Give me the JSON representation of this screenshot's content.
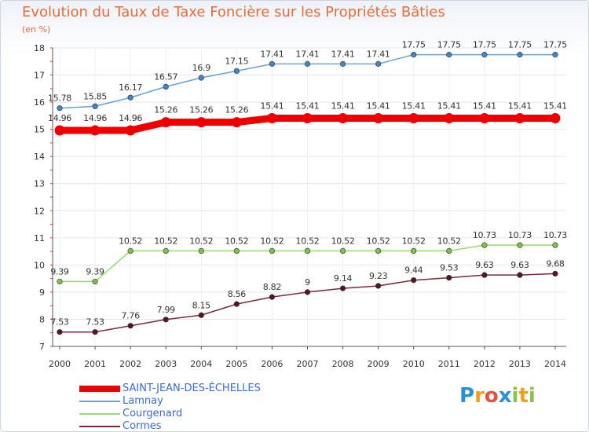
{
  "title": "Evolution du Taux de Taxe Foncière sur les Propriétés Bâties",
  "subtitle": "(en %)",
  "logo": {
    "text": "Proxiti",
    "letters": [
      {
        "ch": "P",
        "color": "#2a8fd6"
      },
      {
        "ch": "r",
        "color": "#f0a020"
      },
      {
        "ch": "o",
        "color": "#e8503a"
      },
      {
        "ch": "x",
        "color": "#2a8fd6"
      },
      {
        "ch": "i",
        "color": "#8bc34a"
      },
      {
        "ch": "t",
        "color": "#f0a020"
      },
      {
        "ch": "i",
        "color": "#8bc34a"
      }
    ]
  },
  "chart_data": {
    "type": "line",
    "title": "Evolution du Taux de Taxe Foncière sur les Propriétés Bâties",
    "ylabel": "(en %)",
    "xlabel": "",
    "ylim": [
      7,
      18
    ],
    "yticks": [
      7,
      8,
      9,
      10,
      11,
      12,
      13,
      14,
      15,
      16,
      17,
      18
    ],
    "categories": [
      "2000",
      "2001",
      "2002",
      "2003",
      "2004",
      "2005",
      "2006",
      "2007",
      "2008",
      "2009",
      "2010",
      "2011",
      "2012",
      "2013",
      "2014"
    ],
    "grid": true,
    "legend_position": "bottom-left",
    "series": [
      {
        "name": "SAINT-JEAN-DES-ÉCHELLES",
        "color": "#ee0000",
        "emphasis": true,
        "values": [
          14.96,
          14.96,
          14.96,
          15.26,
          15.26,
          15.26,
          15.41,
          15.41,
          15.41,
          15.41,
          15.41,
          15.41,
          15.41,
          15.41,
          15.41
        ],
        "labels": [
          "14.96",
          "14.96",
          "14.96",
          "15.26",
          "15.26",
          "15.26",
          "15.41",
          "15.41",
          "15.41",
          "15.41",
          "15.41",
          "15.41",
          "15.41",
          "15.41",
          "15.41"
        ]
      },
      {
        "name": "Lamnay",
        "color": "#6aa2d6",
        "marker_color": "#3f86c8",
        "values": [
          15.78,
          15.85,
          16.17,
          16.57,
          16.9,
          17.15,
          17.41,
          17.41,
          17.41,
          17.41,
          17.75,
          17.75,
          17.75,
          17.75,
          17.75
        ],
        "labels": [
          "15.78",
          "15.85",
          "16.17",
          "16.57",
          "16.9",
          "17.15",
          "17.41",
          "17.41",
          "17.41",
          "17.41",
          "17.75",
          "17.75",
          "17.75",
          "17.75",
          "17.75"
        ]
      },
      {
        "name": "Courgenard",
        "color": "#9ad870",
        "marker_color": "#7cc24a",
        "values": [
          9.39,
          9.39,
          10.52,
          10.52,
          10.52,
          10.52,
          10.52,
          10.52,
          10.52,
          10.52,
          10.52,
          10.52,
          10.73,
          10.73,
          10.73
        ],
        "labels": [
          "9.39",
          "9.39",
          "10.52",
          "10.52",
          "10.52",
          "10.52",
          "10.52",
          "10.52",
          "10.52",
          "10.52",
          "10.52",
          "10.52",
          "10.73",
          "10.73",
          "10.73"
        ]
      },
      {
        "name": "Cormes",
        "color": "#7a2a38",
        "marker_color": "#5a1420",
        "values": [
          7.53,
          7.53,
          7.76,
          7.99,
          8.15,
          8.56,
          8.82,
          9,
          9.14,
          9.23,
          9.44,
          9.53,
          9.63,
          9.63,
          9.68
        ],
        "labels": [
          "7.53",
          "7.53",
          "7.76",
          "7.99",
          "8.15",
          "8.56",
          "8.82",
          "9",
          "9.14",
          "9.23",
          "9.44",
          "9.53",
          "9.63",
          "9.63",
          "9.68"
        ]
      }
    ]
  }
}
